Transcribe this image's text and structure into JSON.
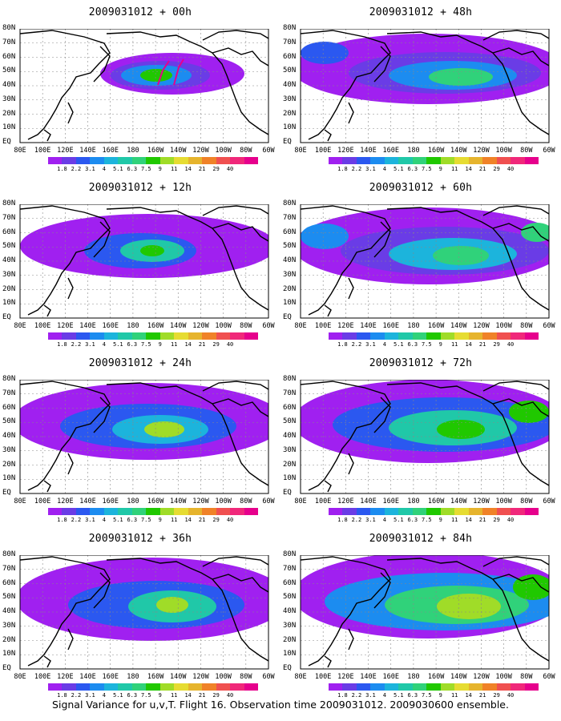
{
  "panels": [
    {
      "title": "2009031012 + 00h"
    },
    {
      "title": "2009031012 + 48h"
    },
    {
      "title": "2009031012 + 12h"
    },
    {
      "title": "2009031012 + 60h"
    },
    {
      "title": "2009031012 + 24h"
    },
    {
      "title": "2009031012 + 72h"
    },
    {
      "title": "2009031012 + 36h"
    },
    {
      "title": "2009031012 + 84h"
    }
  ],
  "lat_labels": [
    "80N",
    "70N",
    "60N",
    "50N",
    "40N",
    "30N",
    "20N",
    "10N",
    "EQ"
  ],
  "lon_labels": [
    "80E",
    "100E",
    "120E",
    "140E",
    "160E",
    "180",
    "160W",
    "140W",
    "120W",
    "100W",
    "80W",
    "60W"
  ],
  "colorbar": {
    "colors": [
      "#a020f0",
      "#6a3ce6",
      "#2b58f0",
      "#1c8cf0",
      "#1cb4dc",
      "#20c8a8",
      "#30d27a",
      "#20c800",
      "#a0dc28",
      "#e6dc32",
      "#e6b42d",
      "#f08228",
      "#f05050",
      "#f0287a",
      "#e6008c"
    ],
    "labels": [
      "1.8",
      "2.2",
      "3.1",
      "4",
      "5.1",
      "6.3",
      "7.5",
      "9",
      "11",
      "14",
      "21",
      "29",
      "40"
    ]
  },
  "caption": "Signal Variance for u,v,T. Flight 16. Observation time 2009031012. 2009030600 ensemble."
}
